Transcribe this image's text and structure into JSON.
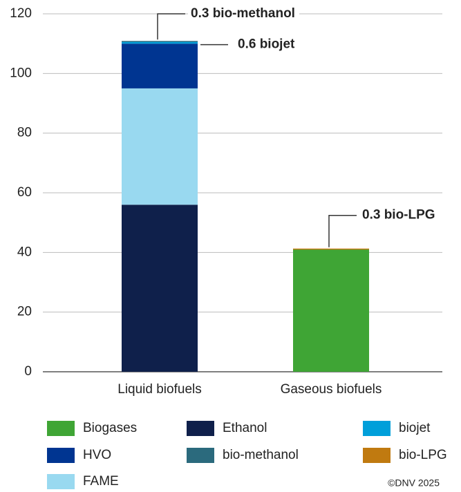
{
  "chart_data": {
    "type": "stacked_bar",
    "categories": [
      "Liquid biofuels",
      "Gaseous biofuels"
    ],
    "series": [
      {
        "name": "Ethanol",
        "color": "#0f204b",
        "values": [
          56,
          null
        ]
      },
      {
        "name": "FAME",
        "color": "#99d9f0",
        "values": [
          39,
          null
        ]
      },
      {
        "name": "HVO",
        "color": "#003591",
        "values": [
          15,
          null
        ]
      },
      {
        "name": "biojet",
        "color": "#009fda",
        "values": [
          0.6,
          null
        ],
        "value_labels": [
          "0.6 biojet",
          null
        ]
      },
      {
        "name": "bio-methanol",
        "color": "#2b6a7d",
        "values": [
          0.3,
          null
        ],
        "value_labels": [
          "0.3 bio-methanol",
          null
        ]
      },
      {
        "name": "Biogases",
        "color": "#3fa535",
        "values": [
          null,
          41
        ]
      },
      {
        "name": "bio-LPG",
        "color": "#c07a10",
        "values": [
          null,
          0.3
        ],
        "value_labels": [
          null,
          "0.3 bio-LPG"
        ]
      }
    ],
    "ylim": [
      0,
      120
    ],
    "yticks": [
      0,
      20,
      40,
      60,
      80,
      100,
      120
    ],
    "grid": true,
    "source": "©DNV 2025"
  }
}
